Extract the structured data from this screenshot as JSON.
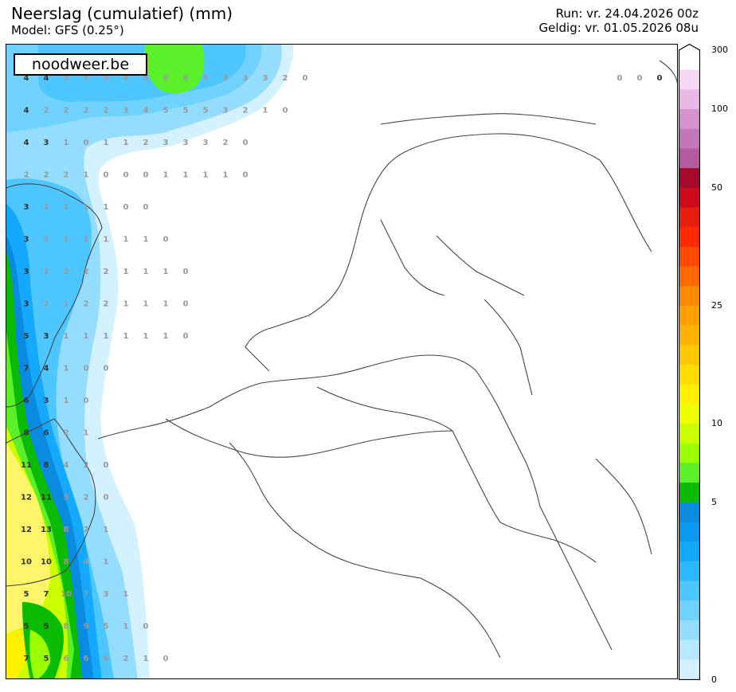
{
  "header": {
    "title": "Neerslag (cumulatief) (mm)",
    "model": "Model: GFS (0.25°)",
    "run": "Run: vr. 24.04.2026 00z",
    "valid": "Geldig: vr. 01.05.2026 08u"
  },
  "brand": "noodweer.be",
  "colorbar": {
    "labels": [
      "300",
      "100",
      "50",
      "25",
      "10",
      "5",
      "0"
    ],
    "colors": [
      "#ffffff",
      "#f7d8f5",
      "#e9b9e6",
      "#d592cf",
      "#c377bb",
      "#b45a9f",
      "#a60a2a",
      "#cc0b1b",
      "#e61f0c",
      "#ff2a00",
      "#ff4a00",
      "#ff6a00",
      "#ff8a00",
      "#ff9f00",
      "#ffb200",
      "#ffc800",
      "#ffdd00",
      "#fff000",
      "#f0ff00",
      "#cbff00",
      "#9bff00",
      "#5cf02b",
      "#0bbb00",
      "#0b8be0",
      "#0a98f2",
      "#14a9ff",
      "#2cb9ff",
      "#4ec6ff",
      "#70d2ff",
      "#95ddff",
      "#b7e8ff",
      "#d3f1ff"
    ]
  },
  "precip_labels": {
    "rows": [
      [
        "4",
        "4",
        "5",
        "5",
        "5",
        "4",
        "5",
        "6",
        "6",
        "5",
        "3",
        "3",
        "3",
        "2",
        "0"
      ],
      [
        "4",
        "2",
        "2",
        "2",
        "2",
        "3",
        "4",
        "5",
        "5",
        "5",
        "3",
        "2",
        "1",
        "0"
      ],
      [
        "4",
        "3",
        "1",
        "0",
        "1",
        "1",
        "2",
        "3",
        "3",
        "3",
        "2",
        "0"
      ],
      [
        "2",
        "2",
        "2",
        "1",
        "0",
        "0",
        "0",
        "1",
        "1",
        "1",
        "1",
        "0"
      ],
      [
        "3",
        "2",
        "1",
        "1",
        "1",
        "0",
        "0"
      ],
      [
        "3",
        "2",
        "1",
        "1",
        "1",
        "1",
        "1",
        "0"
      ],
      [
        "3",
        "2",
        "2",
        "2",
        "2",
        "1",
        "1",
        "1",
        "0"
      ],
      [
        "3",
        "2",
        "1",
        "2",
        "2",
        "1",
        "1",
        "1",
        "0"
      ],
      [
        "5",
        "3",
        "1",
        "1",
        "1",
        "1",
        "1",
        "1",
        "0"
      ],
      [
        "7",
        "4",
        "1",
        "0",
        "0"
      ],
      [
        "6",
        "3",
        "1",
        "0"
      ],
      [
        "8",
        "6",
        "2",
        "1"
      ],
      [
        "11",
        "8",
        "4",
        "2",
        "0"
      ],
      [
        "12",
        "11",
        "5",
        "2",
        "0"
      ],
      [
        "12",
        "13",
        "8",
        "2",
        "1"
      ],
      [
        "10",
        "10",
        "8",
        "4",
        "1"
      ],
      [
        "5",
        "7",
        "10",
        "7",
        "3",
        "1"
      ],
      [
        "5",
        "5",
        "8",
        "9",
        "5",
        "1",
        "0"
      ],
      [
        "7",
        "5",
        "6",
        "6",
        "6",
        "2",
        "1",
        "0"
      ]
    ],
    "top_right": [
      "0",
      "0",
      "0"
    ]
  }
}
